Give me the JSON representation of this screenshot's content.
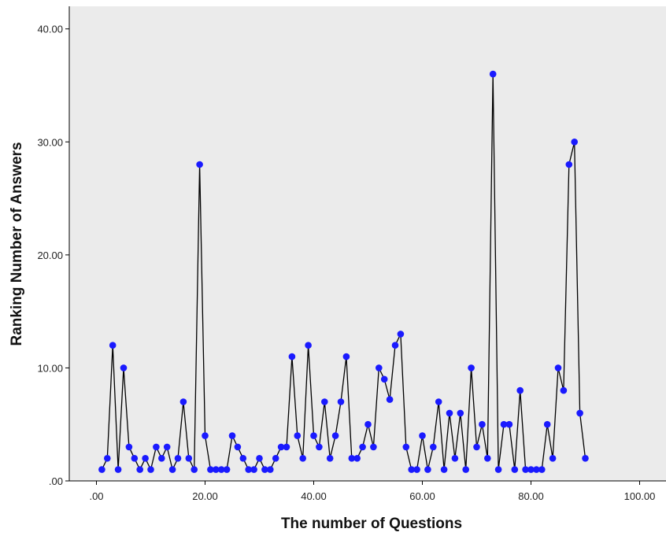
{
  "chart_data": {
    "type": "line",
    "title": "",
    "xlabel": "The number of Questions",
    "ylabel": "Ranking Number of Answers",
    "xlim": [
      -5,
      105
    ],
    "ylim": [
      0,
      42
    ],
    "x_ticks": [
      0,
      20,
      40,
      60,
      80,
      100
    ],
    "x_tick_labels": [
      ".00",
      "20.00",
      "40.00",
      "60.00",
      "80.00",
      "100.00"
    ],
    "y_ticks": [
      0,
      10,
      20,
      30,
      40
    ],
    "y_tick_labels": [
      ".00",
      "10.00",
      "20.00",
      "30.00",
      "40.00"
    ],
    "grid": false,
    "colors": {
      "background": "#ebebeb",
      "line": "#000000",
      "marker": "#1a1aff"
    },
    "series": [
      {
        "x": [
          1,
          2,
          3,
          4,
          5,
          6,
          7,
          8,
          9,
          10,
          11,
          12,
          13,
          14,
          15,
          16,
          17,
          18,
          19,
          20,
          21,
          22,
          23,
          24,
          25,
          26,
          27,
          28,
          29,
          30,
          31,
          32,
          33,
          34,
          35,
          36,
          37,
          38,
          39,
          40,
          41,
          42,
          43,
          44,
          45,
          46,
          47,
          48,
          49,
          50,
          51,
          52,
          53,
          54,
          55,
          56,
          57,
          58,
          59,
          60,
          61,
          62,
          63,
          64,
          65,
          66,
          67,
          68,
          69,
          70,
          71,
          72,
          73,
          74,
          75,
          76,
          77,
          78,
          79,
          80,
          81,
          82,
          83,
          84,
          85,
          86,
          87,
          88,
          89,
          90
        ],
        "y": [
          1,
          2,
          12,
          1,
          10,
          3,
          2,
          1,
          2,
          1,
          3,
          2,
          3,
          1,
          2,
          7,
          2,
          1,
          28,
          4,
          1,
          1,
          1,
          1,
          4,
          3,
          2,
          1,
          1,
          2,
          1,
          1,
          2,
          3,
          3,
          11,
          4,
          2,
          12,
          4,
          3,
          7,
          2,
          4,
          7,
          11,
          2,
          2,
          3,
          5,
          3,
          10,
          9,
          7.2,
          12,
          13,
          3,
          1,
          1,
          4,
          1,
          3,
          7,
          1,
          6,
          2,
          6,
          1,
          10,
          3,
          5,
          2,
          36,
          1,
          5,
          5,
          1,
          8,
          1,
          1,
          1,
          1,
          5,
          2,
          10,
          8,
          28,
          30,
          6,
          2
        ]
      }
    ]
  }
}
